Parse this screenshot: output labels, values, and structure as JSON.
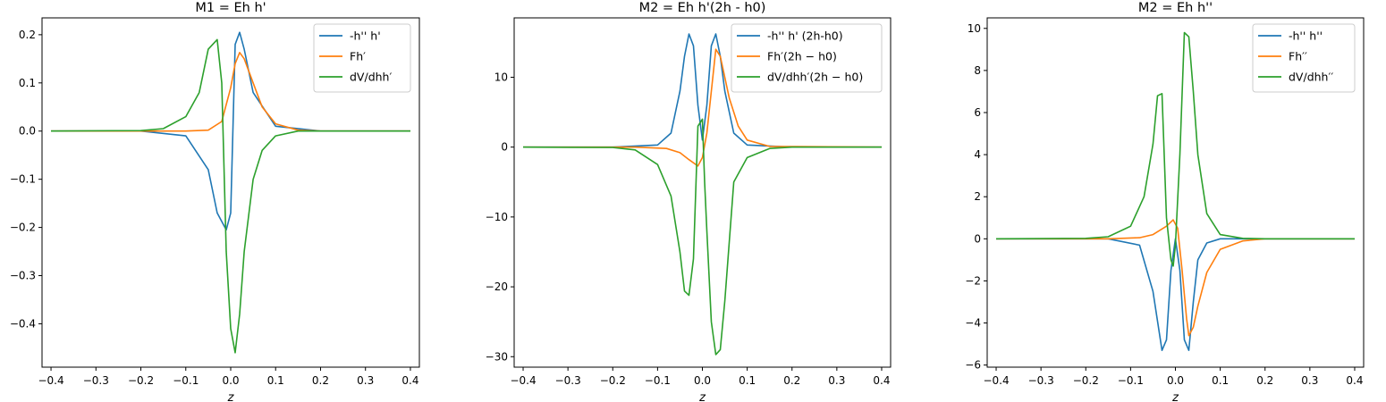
{
  "chart_data": [
    {
      "type": "line",
      "title": "M1 = Eh h'",
      "xlabel": "z",
      "ylabel": "",
      "xlim": [
        -0.42,
        0.42
      ],
      "ylim": [
        -0.49,
        0.235
      ],
      "xticks": [
        -0.4,
        -0.3,
        -0.2,
        -0.1,
        0.0,
        0.1,
        0.2,
        0.3,
        0.4
      ],
      "xtick_labels": [
        "−0.4",
        "−0.3",
        "−0.2",
        "−0.1",
        "0.0",
        "0.1",
        "0.2",
        "0.3",
        "0.4"
      ],
      "yticks": [
        -0.4,
        -0.3,
        -0.2,
        -0.1,
        0.0,
        0.1,
        0.2
      ],
      "ytick_labels": [
        "−0.4",
        "−0.3",
        "−0.2",
        "−0.1",
        "0.0",
        "0.1",
        "0.2"
      ],
      "grid": false,
      "legend": "upper right",
      "series": [
        {
          "name": "-h'' h'",
          "color": "#1f77b4",
          "x": [
            -0.4,
            -0.2,
            -0.1,
            -0.05,
            -0.03,
            -0.01,
            0.0,
            0.01,
            0.02,
            0.03,
            0.05,
            0.1,
            0.2,
            0.4
          ],
          "y": [
            0.0,
            0.0,
            -0.01,
            -0.08,
            -0.17,
            -0.205,
            -0.17,
            0.18,
            0.205,
            0.17,
            0.08,
            0.01,
            0.0,
            0.0
          ]
        },
        {
          "name": "Fh′",
          "color": "#ff7f0e",
          "x": [
            -0.4,
            -0.2,
            -0.1,
            -0.05,
            -0.02,
            0.0,
            0.01,
            0.02,
            0.03,
            0.05,
            0.07,
            0.1,
            0.15,
            0.2,
            0.4
          ],
          "y": [
            0.0,
            0.0,
            0.0,
            0.002,
            0.02,
            0.09,
            0.14,
            0.163,
            0.15,
            0.1,
            0.05,
            0.015,
            0.002,
            0.0,
            0.0
          ]
        },
        {
          "name": "dV/dhh′",
          "color": "#2ca02c",
          "x": [
            -0.4,
            -0.2,
            -0.15,
            -0.1,
            -0.07,
            -0.05,
            -0.03,
            -0.02,
            -0.01,
            0.0,
            0.01,
            0.02,
            0.03,
            0.05,
            0.07,
            0.1,
            0.15,
            0.2,
            0.4
          ],
          "y": [
            0.0,
            0.001,
            0.005,
            0.03,
            0.08,
            0.17,
            0.19,
            0.1,
            -0.25,
            -0.41,
            -0.46,
            -0.38,
            -0.25,
            -0.1,
            -0.04,
            -0.01,
            0.0,
            0.0,
            0.0
          ]
        }
      ]
    },
    {
      "type": "line",
      "title": "M2 = Eh h'(2h - h0)",
      "xlabel": "z",
      "ylabel": "",
      "xlim": [
        -0.42,
        0.42
      ],
      "ylim": [
        -31.5,
        18.5
      ],
      "xticks": [
        -0.4,
        -0.3,
        -0.2,
        -0.1,
        0.0,
        0.1,
        0.2,
        0.3,
        0.4
      ],
      "xtick_labels": [
        "−0.4",
        "−0.3",
        "−0.2",
        "−0.1",
        "0.0",
        "0.1",
        "0.2",
        "0.3",
        "0.4"
      ],
      "yticks": [
        -30,
        -20,
        -10,
        0,
        10
      ],
      "ytick_labels": [
        "−30",
        "−20",
        "−10",
        "0",
        "10"
      ],
      "grid": false,
      "legend": "upper right",
      "series": [
        {
          "name": "-h'' h' (2h-h0)",
          "color": "#1f77b4",
          "x": [
            -0.4,
            -0.2,
            -0.1,
            -0.07,
            -0.05,
            -0.04,
            -0.03,
            -0.02,
            -0.01,
            0.0,
            0.01,
            0.02,
            0.03,
            0.04,
            0.05,
            0.07,
            0.1,
            0.2,
            0.4
          ],
          "y": [
            0.0,
            0.0,
            0.3,
            2.0,
            8.0,
            13.0,
            16.2,
            14.5,
            6.0,
            1.0,
            6.0,
            14.5,
            16.2,
            13.0,
            8.0,
            2.0,
            0.3,
            0.0,
            0.0
          ]
        },
        {
          "name": "Fh′(2h − h0)",
          "color": "#ff7f0e",
          "x": [
            -0.4,
            -0.15,
            -0.08,
            -0.05,
            -0.03,
            -0.01,
            0.0,
            0.01,
            0.02,
            0.03,
            0.04,
            0.06,
            0.08,
            0.1,
            0.15,
            0.4
          ],
          "y": [
            0.0,
            0.0,
            -0.2,
            -0.8,
            -1.8,
            -2.7,
            -1.5,
            2.0,
            8.0,
            14.0,
            13.0,
            7.0,
            3.0,
            1.0,
            0.1,
            0.0
          ]
        },
        {
          "name": "dV/dhh′(2h − h0)",
          "color": "#2ca02c",
          "x": [
            -0.4,
            -0.2,
            -0.15,
            -0.1,
            -0.07,
            -0.05,
            -0.04,
            -0.03,
            -0.02,
            -0.01,
            0.0,
            0.005,
            0.01,
            0.02,
            0.03,
            0.04,
            0.05,
            0.07,
            0.1,
            0.15,
            0.2,
            0.4
          ],
          "y": [
            0.0,
            -0.05,
            -0.4,
            -2.5,
            -7.0,
            -15.0,
            -20.6,
            -21.2,
            -16.0,
            3.0,
            4.0,
            -5.0,
            -12.0,
            -25.0,
            -29.7,
            -29.0,
            -22.0,
            -5.0,
            -1.5,
            -0.2,
            0.0,
            0.0
          ]
        }
      ]
    },
    {
      "type": "line",
      "title": "M2 = Eh h''",
      "xlabel": "z",
      "ylabel": "",
      "xlim": [
        -0.42,
        0.42
      ],
      "ylim": [
        -6.1,
        10.5
      ],
      "xticks": [
        -0.4,
        -0.3,
        -0.2,
        -0.1,
        0.0,
        0.1,
        0.2,
        0.3,
        0.4
      ],
      "xtick_labels": [
        "−0.4",
        "−0.3",
        "−0.2",
        "−0.1",
        "0.0",
        "0.1",
        "0.2",
        "0.3",
        "0.4"
      ],
      "yticks": [
        -6,
        -4,
        -2,
        0,
        2,
        4,
        6,
        8,
        10
      ],
      "ytick_labels": [
        "−6",
        "−4",
        "−2",
        "0",
        "2",
        "4",
        "6",
        "8",
        "10"
      ],
      "grid": false,
      "legend": "upper right",
      "series": [
        {
          "name": "-h'' h''",
          "color": "#1f77b4",
          "x": [
            -0.4,
            -0.15,
            -0.08,
            -0.05,
            -0.03,
            -0.02,
            -0.01,
            0.0,
            0.01,
            0.02,
            0.03,
            0.04,
            0.05,
            0.07,
            0.1,
            0.15,
            0.4
          ],
          "y": [
            0.0,
            0.0,
            -0.3,
            -2.5,
            -5.3,
            -4.8,
            -1.5,
            0.0,
            -1.5,
            -4.8,
            -5.3,
            -3.0,
            -1.0,
            -0.2,
            0.0,
            0.0,
            0.0
          ]
        },
        {
          "name": "Fh′′",
          "color": "#ff7f0e",
          "x": [
            -0.4,
            -0.15,
            -0.08,
            -0.05,
            -0.02,
            -0.005,
            0.005,
            0.015,
            0.025,
            0.03,
            0.04,
            0.05,
            0.07,
            0.1,
            0.15,
            0.2,
            0.4
          ],
          "y": [
            0.0,
            0.0,
            0.05,
            0.2,
            0.6,
            0.9,
            0.5,
            -1.5,
            -3.8,
            -4.6,
            -4.2,
            -3.2,
            -1.6,
            -0.5,
            -0.1,
            0.0,
            0.0
          ]
        },
        {
          "name": "dV/dhh′′",
          "color": "#2ca02c",
          "x": [
            -0.4,
            -0.2,
            -0.15,
            -0.1,
            -0.07,
            -0.05,
            -0.04,
            -0.03,
            -0.02,
            -0.01,
            -0.005,
            0.0,
            0.01,
            0.02,
            0.03,
            0.04,
            0.05,
            0.07,
            0.1,
            0.15,
            0.2,
            0.4
          ],
          "y": [
            0.0,
            0.02,
            0.1,
            0.6,
            2.0,
            4.5,
            6.8,
            6.9,
            1.0,
            -1.0,
            -1.3,
            -0.3,
            4.0,
            9.8,
            9.6,
            7.0,
            4.0,
            1.2,
            0.2,
            0.02,
            0.0,
            0.0
          ]
        }
      ]
    }
  ]
}
